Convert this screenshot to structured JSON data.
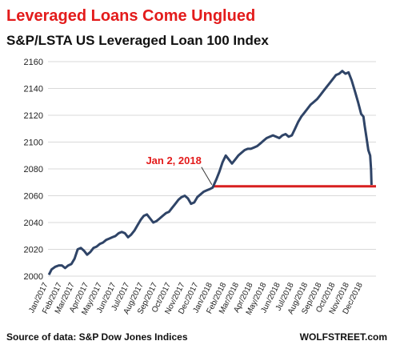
{
  "title": "Leveraged Loans Come Unglued",
  "subtitle": "S&P/LSTA US Leveraged Loan 100 Index",
  "source": "Source of data: S&P Dow Jones Indices",
  "credit": "WOLFSTREET.com",
  "chart_data": {
    "type": "line",
    "ylim": [
      2000,
      2160
    ],
    "yticks": [
      2000,
      2020,
      2040,
      2060,
      2080,
      2100,
      2120,
      2140,
      2160
    ],
    "xlim": [
      "2017-01-01",
      "2018-12-31"
    ],
    "xticks": [
      {
        "date": "2017-01-01",
        "label": "Jan/2017"
      },
      {
        "date": "2017-02-01",
        "label": "Feb/2017"
      },
      {
        "date": "2017-03-01",
        "label": "Mar/2017"
      },
      {
        "date": "2017-04-01",
        "label": "Apr/2017"
      },
      {
        "date": "2017-05-01",
        "label": "May/2017"
      },
      {
        "date": "2017-06-01",
        "label": "Jun/2017"
      },
      {
        "date": "2017-07-01",
        "label": "Jul/2017"
      },
      {
        "date": "2017-08-01",
        "label": "Aug/2017"
      },
      {
        "date": "2017-09-01",
        "label": "Sep/2017"
      },
      {
        "date": "2017-10-01",
        "label": "Oct/2017"
      },
      {
        "date": "2017-11-01",
        "label": "Nov/2017"
      },
      {
        "date": "2017-12-01",
        "label": "Dec/2017"
      },
      {
        "date": "2018-01-01",
        "label": "Jan/2018"
      },
      {
        "date": "2018-02-01",
        "label": "Feb/2018"
      },
      {
        "date": "2018-03-01",
        "label": "Mar/2018"
      },
      {
        "date": "2018-04-01",
        "label": "Apr/2018"
      },
      {
        "date": "2018-05-01",
        "label": "May/2018"
      },
      {
        "date": "2018-06-01",
        "label": "Jun/2018"
      },
      {
        "date": "2018-07-01",
        "label": "Jul/2018"
      },
      {
        "date": "2018-08-01",
        "label": "Aug/2018"
      },
      {
        "date": "2018-09-01",
        "label": "Sep/2018"
      },
      {
        "date": "2018-10-01",
        "label": "Oct/2018"
      },
      {
        "date": "2018-11-01",
        "label": "Nov/2018"
      },
      {
        "date": "2018-12-01",
        "label": "Dec/2018"
      }
    ],
    "series": [
      {
        "color": "#2f4467",
        "points": [
          [
            "2017-01-03",
            2001
          ],
          [
            "2017-01-09",
            2005
          ],
          [
            "2017-01-17",
            2007
          ],
          [
            "2017-01-25",
            2008
          ],
          [
            "2017-02-01",
            2008
          ],
          [
            "2017-02-08",
            2006
          ],
          [
            "2017-02-15",
            2008
          ],
          [
            "2017-02-22",
            2009
          ],
          [
            "2017-03-01",
            2013
          ],
          [
            "2017-03-08",
            2020
          ],
          [
            "2017-03-15",
            2021
          ],
          [
            "2017-03-22",
            2019
          ],
          [
            "2017-03-29",
            2016
          ],
          [
            "2017-04-05",
            2018
          ],
          [
            "2017-04-12",
            2021
          ],
          [
            "2017-04-19",
            2022
          ],
          [
            "2017-04-26",
            2024
          ],
          [
            "2017-05-03",
            2025
          ],
          [
            "2017-05-10",
            2027
          ],
          [
            "2017-05-17",
            2028
          ],
          [
            "2017-05-24",
            2029
          ],
          [
            "2017-05-31",
            2030
          ],
          [
            "2017-06-07",
            2032
          ],
          [
            "2017-06-14",
            2033
          ],
          [
            "2017-06-21",
            2032
          ],
          [
            "2017-06-28",
            2029
          ],
          [
            "2017-07-05",
            2031
          ],
          [
            "2017-07-12",
            2034
          ],
          [
            "2017-07-19",
            2038
          ],
          [
            "2017-07-26",
            2042
          ],
          [
            "2017-08-02",
            2045
          ],
          [
            "2017-08-09",
            2046
          ],
          [
            "2017-08-16",
            2043
          ],
          [
            "2017-08-23",
            2040
          ],
          [
            "2017-08-30",
            2041
          ],
          [
            "2017-09-06",
            2043
          ],
          [
            "2017-09-13",
            2045
          ],
          [
            "2017-09-20",
            2047
          ],
          [
            "2017-09-27",
            2048
          ],
          [
            "2017-10-04",
            2051
          ],
          [
            "2017-10-11",
            2054
          ],
          [
            "2017-10-18",
            2057
          ],
          [
            "2017-10-25",
            2059
          ],
          [
            "2017-11-01",
            2060
          ],
          [
            "2017-11-08",
            2058
          ],
          [
            "2017-11-15",
            2054
          ],
          [
            "2017-11-22",
            2055
          ],
          [
            "2017-11-29",
            2059
          ],
          [
            "2017-12-06",
            2061
          ],
          [
            "2017-12-13",
            2063
          ],
          [
            "2017-12-20",
            2064
          ],
          [
            "2017-12-27",
            2065
          ],
          [
            "2018-01-02",
            2066
          ],
          [
            "2018-01-10",
            2072
          ],
          [
            "2018-01-17",
            2078
          ],
          [
            "2018-01-24",
            2085
          ],
          [
            "2018-01-31",
            2090
          ],
          [
            "2018-02-07",
            2087
          ],
          [
            "2018-02-14",
            2084
          ],
          [
            "2018-02-21",
            2087
          ],
          [
            "2018-02-28",
            2090
          ],
          [
            "2018-03-07",
            2092
          ],
          [
            "2018-03-14",
            2094
          ],
          [
            "2018-03-21",
            2095
          ],
          [
            "2018-03-28",
            2095
          ],
          [
            "2018-04-04",
            2096
          ],
          [
            "2018-04-11",
            2097
          ],
          [
            "2018-04-18",
            2099
          ],
          [
            "2018-04-25",
            2101
          ],
          [
            "2018-05-02",
            2103
          ],
          [
            "2018-05-09",
            2104
          ],
          [
            "2018-05-16",
            2105
          ],
          [
            "2018-05-23",
            2104
          ],
          [
            "2018-05-30",
            2103
          ],
          [
            "2018-06-06",
            2105
          ],
          [
            "2018-06-13",
            2106
          ],
          [
            "2018-06-20",
            2104
          ],
          [
            "2018-06-27",
            2105
          ],
          [
            "2018-07-04",
            2110
          ],
          [
            "2018-07-11",
            2115
          ],
          [
            "2018-07-18",
            2119
          ],
          [
            "2018-07-25",
            2122
          ],
          [
            "2018-08-01",
            2125
          ],
          [
            "2018-08-08",
            2128
          ],
          [
            "2018-08-15",
            2130
          ],
          [
            "2018-08-22",
            2132
          ],
          [
            "2018-08-29",
            2135
          ],
          [
            "2018-09-05",
            2138
          ],
          [
            "2018-09-12",
            2141
          ],
          [
            "2018-09-19",
            2144
          ],
          [
            "2018-09-26",
            2147
          ],
          [
            "2018-10-03",
            2150
          ],
          [
            "2018-10-10",
            2151
          ],
          [
            "2018-10-17",
            2153
          ],
          [
            "2018-10-24",
            2151
          ],
          [
            "2018-10-31",
            2152
          ],
          [
            "2018-11-07",
            2146
          ],
          [
            "2018-11-14",
            2138
          ],
          [
            "2018-11-21",
            2130
          ],
          [
            "2018-11-28",
            2121
          ],
          [
            "2018-12-03",
            2119
          ],
          [
            "2018-12-06",
            2112
          ],
          [
            "2018-12-10",
            2103
          ],
          [
            "2018-12-14",
            2094
          ],
          [
            "2018-12-18",
            2090
          ],
          [
            "2018-12-20",
            2080
          ],
          [
            "2018-12-21",
            2068
          ]
        ]
      }
    ],
    "reference_line": {
      "y": 2067,
      "from": "2018-01-02",
      "to": "2018-12-31",
      "color": "#d81f1f"
    },
    "annotations": [
      {
        "text": "Jan 2, 2018",
        "x": "2018-01-02",
        "y": 2067,
        "color": "#e31b1b"
      }
    ]
  }
}
